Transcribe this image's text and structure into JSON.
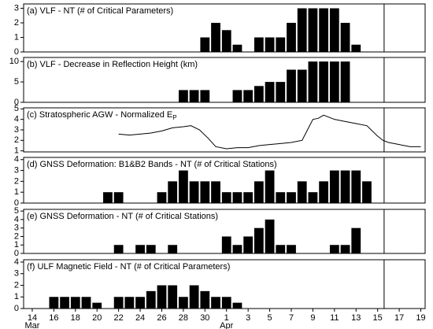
{
  "chart_data": [
    {
      "type": "bar",
      "title": "(a) VLF - NT (# of Critical Parameters)",
      "color": "#000000",
      "x": [
        16,
        17,
        18,
        19,
        21,
        22,
        23,
        24,
        25,
        26,
        27,
        28,
        29,
        30
      ],
      "values": [
        1,
        2,
        1.5,
        0.5,
        1,
        1,
        1,
        2,
        3,
        3,
        3,
        3,
        2,
        0.5
      ],
      "xlim": [
        -0.8,
        36.4
      ],
      "ylim": [
        0,
        3.3
      ],
      "yticks": [
        0,
        1,
        2,
        3
      ],
      "reference_x": 32.6
    },
    {
      "type": "bar",
      "title": "(b) VLF - Decrease in Reflection Height (km)",
      "color": "#000000",
      "x": [
        14,
        15,
        16,
        19,
        20,
        21,
        22,
        23,
        24,
        25,
        26,
        27,
        28,
        29
      ],
      "values": [
        3,
        3,
        3,
        3,
        3,
        4,
        5,
        5,
        8,
        8,
        10,
        10,
        10,
        10
      ],
      "xlim": [
        -0.8,
        36.4
      ],
      "ylim": [
        0,
        11
      ],
      "yticks": [
        0,
        5,
        10
      ],
      "reference_x": 32.6
    },
    {
      "type": "line",
      "title": "(c) Stratospheric AGW - Normalized E",
      "title_sub": "P",
      "color": "#000000",
      "x": [
        8,
        9,
        10,
        11,
        12,
        13,
        14,
        14.7,
        15.5,
        16.3,
        17,
        18,
        19,
        20,
        21,
        22,
        23,
        24,
        25,
        25.5,
        26,
        26.5,
        27,
        28,
        29,
        30,
        31,
        32,
        32.5,
        33,
        34,
        35,
        36
      ],
      "values": [
        2.6,
        2.5,
        2.6,
        2.7,
        2.9,
        3.2,
        3.3,
        3.4,
        3.0,
        2.2,
        1.4,
        1.2,
        1.3,
        1.3,
        1.5,
        1.6,
        1.7,
        1.8,
        2.0,
        3.0,
        4.0,
        4.1,
        4.4,
        4.0,
        3.8,
        3.6,
        3.4,
        2.4,
        2.0,
        1.8,
        1.6,
        1.4,
        1.4
      ],
      "xlim": [
        -0.8,
        36.4
      ],
      "ylim": [
        0.9,
        5.1
      ],
      "yticks": [
        1,
        2,
        3,
        4,
        5
      ],
      "reference_x": 32.6
    },
    {
      "type": "bar",
      "title": "(d) GNSS Deformation: B1&B2 Bands - NT (# of Critical Stations)",
      "color": "#000000",
      "x": [
        7,
        8,
        12,
        13,
        14,
        15,
        16,
        17,
        18,
        19,
        20,
        21,
        22,
        23,
        24,
        25,
        26,
        27,
        28,
        29,
        30,
        31
      ],
      "values": [
        1,
        1,
        1,
        2,
        3,
        2,
        2,
        2,
        1,
        1,
        1,
        2,
        3,
        1,
        1,
        2,
        1,
        2,
        3,
        3,
        3,
        2
      ],
      "xlim": [
        -0.8,
        36.4
      ],
      "ylim": [
        0,
        4.2
      ],
      "yticks": [
        0,
        1,
        2,
        3,
        4
      ],
      "reference_x": 32.6
    },
    {
      "type": "bar",
      "title": "(e) GNSS Deformation - NT (# of Critical Stations)",
      "color": "#000000",
      "x": [
        8,
        10,
        11,
        13,
        18,
        19,
        20,
        21,
        22,
        23,
        24,
        28,
        29,
        30
      ],
      "values": [
        1,
        1,
        1,
        1,
        2,
        1,
        2,
        3,
        4,
        1,
        1,
        1,
        1,
        3
      ],
      "xlim": [
        -0.8,
        36.4
      ],
      "ylim": [
        0,
        5.2
      ],
      "yticks": [
        0,
        1,
        2,
        3,
        4,
        5
      ],
      "reference_x": 32.6
    },
    {
      "type": "bar",
      "title": "(f) ULF Magnetic Field - NT (# of Critical Parameters)",
      "color": "#000000",
      "x": [
        2,
        3,
        4,
        5,
        6,
        8,
        9,
        10,
        11,
        12,
        13,
        14,
        15,
        16,
        17,
        18,
        19
      ],
      "values": [
        1,
        1,
        1,
        1,
        0.5,
        1,
        1,
        1,
        1.5,
        2,
        2,
        1,
        2,
        1.5,
        1,
        1,
        0.5
      ],
      "xlim": [
        -0.8,
        36.4
      ],
      "ylim": [
        0,
        4.2
      ],
      "yticks": [
        0,
        1,
        2,
        3,
        4
      ],
      "reference_x": 32.6,
      "xticks": [
        {
          "value": 0,
          "label": "14"
        },
        {
          "value": 2,
          "label": "16"
        },
        {
          "value": 4,
          "label": "18"
        },
        {
          "value": 6,
          "label": "20"
        },
        {
          "value": 8,
          "label": "22"
        },
        {
          "value": 10,
          "label": "24"
        },
        {
          "value": 12,
          "label": "26"
        },
        {
          "value": 14,
          "label": "28"
        },
        {
          "value": 16,
          "label": "30"
        },
        {
          "value": 18,
          "label": "1"
        },
        {
          "value": 20,
          "label": "3"
        },
        {
          "value": 22,
          "label": "5"
        },
        {
          "value": 24,
          "label": "7"
        },
        {
          "value": 26,
          "label": "9"
        },
        {
          "value": 28,
          "label": "11"
        },
        {
          "value": 30,
          "label": "13"
        },
        {
          "value": 32,
          "label": "15"
        },
        {
          "value": 34,
          "label": "17"
        },
        {
          "value": 36,
          "label": "19"
        }
      ],
      "month_labels": [
        {
          "value": 0,
          "label": "Mar"
        },
        {
          "value": 18,
          "label": "Apr"
        }
      ]
    }
  ]
}
